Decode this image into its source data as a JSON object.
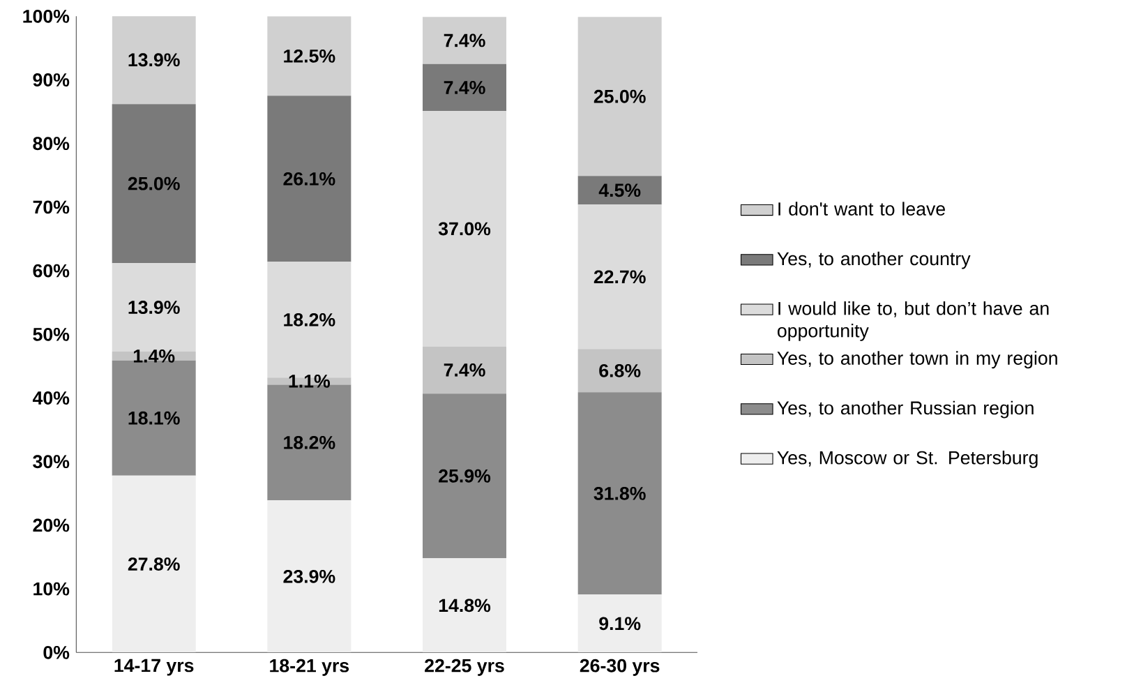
{
  "chart_data": {
    "type": "bar",
    "stacked": true,
    "categories": [
      "14-17 yrs",
      "18-21 yrs",
      "22-25 yrs",
      "26-30 yrs"
    ],
    "series": [
      {
        "name": "Yes, Moscow or St. Petersburg",
        "color": "#eeeeee",
        "values": [
          27.8,
          23.9,
          14.8,
          9.1
        ],
        "value_labels": [
          "27.8%",
          "23.9%",
          "14.8%",
          "9.1%"
        ]
      },
      {
        "name": "Yes, to another Russian region",
        "color": "#8c8c8c",
        "values": [
          18.1,
          18.2,
          25.9,
          31.8
        ],
        "value_labels": [
          "18.1%",
          "18.2%",
          "25.9%",
          "31.8%"
        ]
      },
      {
        "name": "Yes, to another town in my region",
        "color": "#c4c4c4",
        "values": [
          1.4,
          1.1,
          7.4,
          6.8
        ],
        "value_labels": [
          "1.4%",
          "1.1%",
          "7.4%",
          "6.8%"
        ]
      },
      {
        "name": "I would like to, but don’t have an opportunity",
        "color": "#dcdcdc",
        "values": [
          13.9,
          18.2,
          37.0,
          22.7
        ],
        "value_labels": [
          "13.9%",
          "18.2%",
          "37.0%",
          "22.7%"
        ]
      },
      {
        "name": "Yes, to another country",
        "color": "#7a7a7a",
        "values": [
          25.0,
          26.1,
          7.4,
          4.5
        ],
        "value_labels": [
          "25.0%",
          "26.1%",
          "7.4%",
          "4.5%"
        ]
      },
      {
        "name": "I don't want to leave",
        "color": "#d0d0d0",
        "values": [
          13.9,
          12.5,
          7.4,
          25.0
        ],
        "value_labels": [
          "13.9%",
          "12.5%",
          "7.4%",
          "25.0%"
        ]
      }
    ],
    "ylim": [
      0,
      100
    ],
    "yticks": [
      {
        "value": 0,
        "label": "0%"
      },
      {
        "value": 10,
        "label": "10%"
      },
      {
        "value": 20,
        "label": "20%"
      },
      {
        "value": 30,
        "label": "30%"
      },
      {
        "value": 40,
        "label": "40%"
      },
      {
        "value": 50,
        "label": "50%"
      },
      {
        "value": 60,
        "label": "60%"
      },
      {
        "value": 70,
        "label": "70%"
      },
      {
        "value": 80,
        "label": "80%"
      },
      {
        "value": 90,
        "label": "90%"
      },
      {
        "value": 100,
        "label": "100%"
      }
    ],
    "legend": "right",
    "grid": false
  }
}
